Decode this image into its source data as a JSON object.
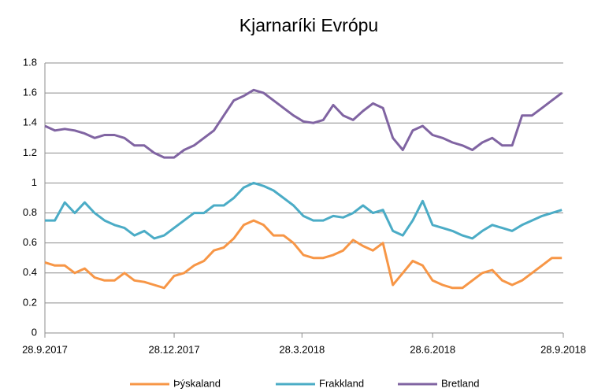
{
  "chart_data": {
    "type": "line",
    "title": "Kjarnaríki Evrópu",
    "x": [
      "2017-09-28",
      "2017-10-05",
      "2017-10-12",
      "2017-10-19",
      "2017-10-26",
      "2017-11-02",
      "2017-11-09",
      "2017-11-16",
      "2017-11-23",
      "2017-11-30",
      "2017-12-07",
      "2017-12-14",
      "2017-12-21",
      "2017-12-28",
      "2018-01-04",
      "2018-01-11",
      "2018-01-18",
      "2018-01-25",
      "2018-02-01",
      "2018-02-08",
      "2018-02-15",
      "2018-02-22",
      "2018-03-01",
      "2018-03-08",
      "2018-03-15",
      "2018-03-22",
      "2018-03-29",
      "2018-04-05",
      "2018-04-12",
      "2018-04-19",
      "2018-04-26",
      "2018-05-03",
      "2018-05-10",
      "2018-05-17",
      "2018-05-24",
      "2018-05-31",
      "2018-06-07",
      "2018-06-14",
      "2018-06-21",
      "2018-06-28",
      "2018-07-05",
      "2018-07-12",
      "2018-07-19",
      "2018-07-26",
      "2018-08-02",
      "2018-08-09",
      "2018-08-16",
      "2018-08-23",
      "2018-08-30",
      "2018-09-06",
      "2018-09-13",
      "2018-09-20",
      "2018-09-27"
    ],
    "series": [
      {
        "name": "Þýskaland",
        "color": "#f79646",
        "values": [
          0.47,
          0.45,
          0.45,
          0.4,
          0.43,
          0.37,
          0.35,
          0.35,
          0.4,
          0.35,
          0.34,
          0.32,
          0.3,
          0.38,
          0.4,
          0.45,
          0.48,
          0.55,
          0.57,
          0.63,
          0.72,
          0.75,
          0.72,
          0.65,
          0.65,
          0.6,
          0.52,
          0.5,
          0.5,
          0.52,
          0.55,
          0.62,
          0.58,
          0.55,
          0.6,
          0.32,
          0.4,
          0.48,
          0.45,
          0.35,
          0.32,
          0.3,
          0.3,
          0.35,
          0.4,
          0.42,
          0.35,
          0.32,
          0.35,
          0.4,
          0.45,
          0.5,
          0.5
        ]
      },
      {
        "name": "Frakkland",
        "color": "#4bacc6",
        "values": [
          0.75,
          0.75,
          0.87,
          0.8,
          0.87,
          0.8,
          0.75,
          0.72,
          0.7,
          0.65,
          0.68,
          0.63,
          0.65,
          0.7,
          0.75,
          0.8,
          0.8,
          0.85,
          0.85,
          0.9,
          0.97,
          1.0,
          0.98,
          0.95,
          0.9,
          0.85,
          0.78,
          0.75,
          0.75,
          0.78,
          0.77,
          0.8,
          0.85,
          0.8,
          0.82,
          0.68,
          0.65,
          0.75,
          0.88,
          0.72,
          0.7,
          0.68,
          0.65,
          0.63,
          0.68,
          0.72,
          0.7,
          0.68,
          0.72,
          0.75,
          0.78,
          0.8,
          0.82
        ]
      },
      {
        "name": "Bretland",
        "color": "#8064a2",
        "values": [
          1.38,
          1.35,
          1.36,
          1.35,
          1.33,
          1.3,
          1.32,
          1.32,
          1.3,
          1.25,
          1.25,
          1.2,
          1.17,
          1.17,
          1.22,
          1.25,
          1.3,
          1.35,
          1.45,
          1.55,
          1.58,
          1.62,
          1.6,
          1.55,
          1.5,
          1.45,
          1.41,
          1.4,
          1.42,
          1.52,
          1.45,
          1.42,
          1.48,
          1.53,
          1.5,
          1.3,
          1.22,
          1.35,
          1.38,
          1.32,
          1.3,
          1.27,
          1.25,
          1.22,
          1.27,
          1.3,
          1.25,
          1.25,
          1.45,
          1.45,
          1.5,
          1.55,
          1.6
        ]
      }
    ],
    "xlim": [
      "2017-09-28",
      "2018-09-28"
    ],
    "xticks": [
      {
        "value": "2017-09-28",
        "label": "28.9.2017"
      },
      {
        "value": "2017-12-28",
        "label": "28.12.2017"
      },
      {
        "value": "2018-03-28",
        "label": "28.3.2018"
      },
      {
        "value": "2018-06-28",
        "label": "28.6.2018"
      },
      {
        "value": "2018-09-28",
        "label": "28.9.2018"
      }
    ],
    "ylim": [
      0,
      1.8
    ],
    "yticks": [
      0,
      0.2,
      0.4,
      0.6,
      0.8,
      1,
      1.2,
      1.4,
      1.6,
      1.8
    ],
    "grid": true,
    "legend": "bottom"
  }
}
